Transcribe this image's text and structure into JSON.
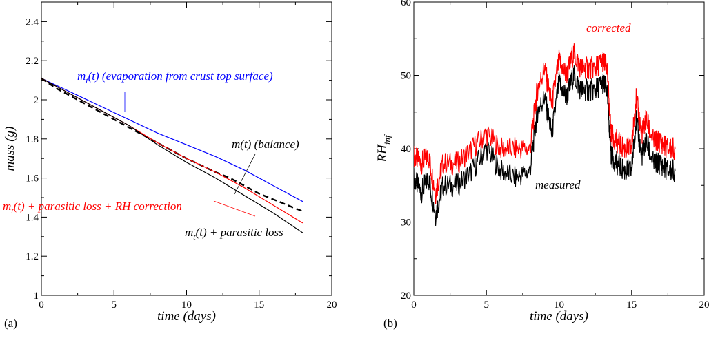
{
  "chart_data": [
    {
      "panel_label": "(a)",
      "type": "line",
      "xlabel": "time (days)",
      "ylabel": "mass (g)",
      "xlim": [
        0,
        20
      ],
      "ylim": [
        1,
        2.5
      ],
      "xticks": [
        "0",
        "5",
        "10",
        "15",
        "20"
      ],
      "yticks": [
        "1",
        "1.2",
        "1.4",
        "1.6",
        "1.8",
        "2",
        "2.2",
        "2.4"
      ],
      "xtick_values": [
        0,
        5,
        10,
        15,
        20
      ],
      "ytick_values": [
        1,
        1.2,
        1.4,
        1.6,
        1.8,
        2.0,
        2.2,
        2.4
      ],
      "grid": false,
      "series": [
        {
          "name": "m_t(t) (evaporation from crust top surface)",
          "color": "#0000ff",
          "dash": "solid",
          "x": [
            0,
            2,
            4,
            6,
            8,
            10,
            12,
            14,
            16,
            18
          ],
          "y": [
            2.11,
            2.04,
            1.97,
            1.9,
            1.83,
            1.77,
            1.71,
            1.64,
            1.56,
            1.48
          ]
        },
        {
          "name": "m(t) (balance)",
          "color": "#000000",
          "dash": "dashed",
          "x": [
            0,
            1,
            2,
            4,
            6,
            8,
            10,
            12,
            13,
            14,
            15,
            16,
            17,
            18
          ],
          "y": [
            2.11,
            2.06,
            2.02,
            1.94,
            1.86,
            1.78,
            1.7,
            1.63,
            1.6,
            1.56,
            1.52,
            1.49,
            1.46,
            1.43
          ]
        },
        {
          "name": "m_t(t) + parasitic loss + RH correction",
          "color": "#ff0000",
          "dash": "solid",
          "x": [
            0,
            2,
            4,
            6,
            8,
            10,
            12,
            14,
            16,
            18
          ],
          "y": [
            2.11,
            2.03,
            1.95,
            1.87,
            1.78,
            1.7,
            1.63,
            1.55,
            1.46,
            1.37
          ]
        },
        {
          "name": "m_t(t) + parasitic loss",
          "color": "#000000",
          "dash": "solid",
          "x": [
            0,
            2,
            4,
            6,
            8,
            10,
            12,
            14,
            16,
            18
          ],
          "y": [
            2.11,
            2.03,
            1.95,
            1.87,
            1.77,
            1.68,
            1.6,
            1.51,
            1.42,
            1.32
          ]
        }
      ],
      "annotations": [
        {
          "base": "m",
          "sub": "t",
          "rest": "(t) (evaporation from crust top surface)",
          "color": "#0000ff"
        },
        {
          "base": "m(t) (balance)",
          "sub": "",
          "rest": "",
          "color": "#000000"
        },
        {
          "base": "m",
          "sub": "t",
          "rest": "(t) + parasitic loss + RH correction",
          "color": "#ff0000"
        },
        {
          "base": "m",
          "sub": "t",
          "rest": "(t) + parasitic loss",
          "color": "#000000"
        }
      ]
    },
    {
      "panel_label": "(b)",
      "type": "line",
      "xlabel": "time (days)",
      "ylabel": "RH",
      "ylabel_sub": "inf",
      "xlim": [
        0,
        20
      ],
      "ylim": [
        20,
        60
      ],
      "xticks": [
        "0",
        "5",
        "10",
        "15",
        "20"
      ],
      "yticks": [
        "20",
        "30",
        "40",
        "50",
        "60"
      ],
      "xtick_values": [
        0,
        5,
        10,
        15,
        20
      ],
      "ytick_values": [
        20,
        30,
        40,
        50,
        60
      ],
      "grid": false,
      "series": [
        {
          "name": "measured",
          "color": "#000000",
          "x": [
            0,
            0.5,
            1,
            1.5,
            2,
            3,
            4,
            5,
            6,
            7,
            8,
            8.5,
            9,
            9.5,
            10,
            10.5,
            11,
            11.5,
            12,
            12.5,
            13,
            13.3,
            13.6,
            14,
            14.5,
            15,
            15.3,
            15.7,
            16,
            16.5,
            17,
            17.5,
            18
          ],
          "y": [
            36,
            34,
            36,
            31,
            35,
            35,
            37,
            40,
            37,
            36,
            37,
            45,
            47,
            42,
            49,
            47,
            50,
            48,
            48,
            48,
            49,
            48,
            39,
            38,
            37,
            37,
            44,
            39,
            41,
            38,
            38,
            37,
            37
          ]
        },
        {
          "name": "corrected",
          "color": "#ff0000",
          "x": [
            0,
            0.5,
            1,
            1.5,
            2,
            3,
            4,
            5,
            6,
            7,
            8,
            8.5,
            9,
            9.5,
            10,
            10.5,
            11,
            11.5,
            12,
            12.5,
            13,
            13.3,
            13.6,
            14,
            14.5,
            15,
            15.3,
            15.7,
            16,
            16.5,
            17,
            17.5,
            18
          ],
          "y": [
            39,
            38,
            39,
            34,
            38,
            38,
            40,
            42,
            40,
            40,
            40,
            48,
            51,
            46,
            52,
            50,
            53,
            51,
            51,
            51,
            52,
            51,
            42,
            41,
            40,
            40,
            47,
            42,
            44,
            41,
            41,
            40,
            40
          ]
        }
      ],
      "annotations": [
        {
          "base": "corrected",
          "sub": "",
          "rest": "",
          "color": "#ff0000"
        },
        {
          "base": "measured",
          "sub": "",
          "rest": "",
          "color": "#000000"
        }
      ]
    }
  ]
}
